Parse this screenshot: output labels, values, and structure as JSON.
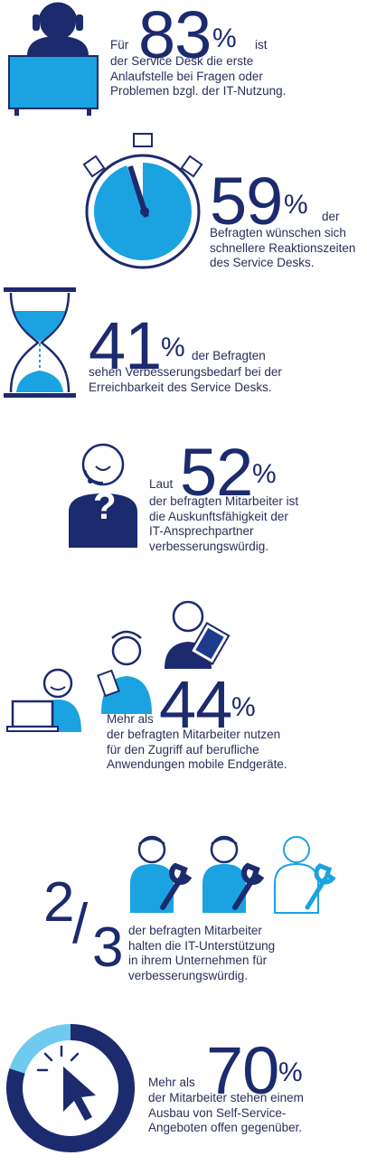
{
  "colors": {
    "navy": "#1c2a6e",
    "blue": "#1aa3e0",
    "light": "#6fcaf0",
    "dark": "#1e3a8c"
  },
  "s1": {
    "pre": "Für",
    "num": "83",
    "pct": "%",
    "post": "ist",
    "lines": [
      "der Service Desk die erste",
      "Anlaufstelle bei Fragen oder",
      "Problemen bzgl. der IT-Nutzung."
    ]
  },
  "s2": {
    "num": "59",
    "pct": "%",
    "post": "der",
    "lines": [
      "Befragten wünschen sich",
      "schnellere Reaktionszeiten",
      "des Service Desks."
    ]
  },
  "s3": {
    "num": "41",
    "pct": "%",
    "post": "der Befragten",
    "lines": [
      "sehen Verbesserungsbedarf bei der",
      "Erreichbarkeit des Service Desks."
    ]
  },
  "s4": {
    "pre": "Laut",
    "num": "52",
    "pct": "%",
    "lines": [
      "der befragten Mitarbeiter ist",
      "die Auskunftsfähigkeit der",
      "IT-Ansprechpartner",
      "verbesserungswürdig."
    ],
    "icon_char": "?"
  },
  "s5": {
    "pre": "Mehr als",
    "num": "44",
    "pct": "%",
    "lines": [
      "der befragten Mitarbeiter nutzen",
      "für den Zugriff auf berufliche",
      "Anwendungen mobile Endgeräte."
    ]
  },
  "s6": {
    "num_top": "2",
    "slash": "/",
    "num_bot": "3",
    "lines": [
      "der befragten Mitarbeiter",
      "halten die IT-Unterstützung",
      "in ihrem Unternehmen für",
      "verbesserungswürdig."
    ]
  },
  "s7": {
    "pre": "Mehr als",
    "num": "70",
    "pct": "%",
    "lines": [
      "der Mitarbeiter stehen einem",
      "Ausbau von Self-Service-",
      "Angeboten offen gegenüber."
    ]
  }
}
